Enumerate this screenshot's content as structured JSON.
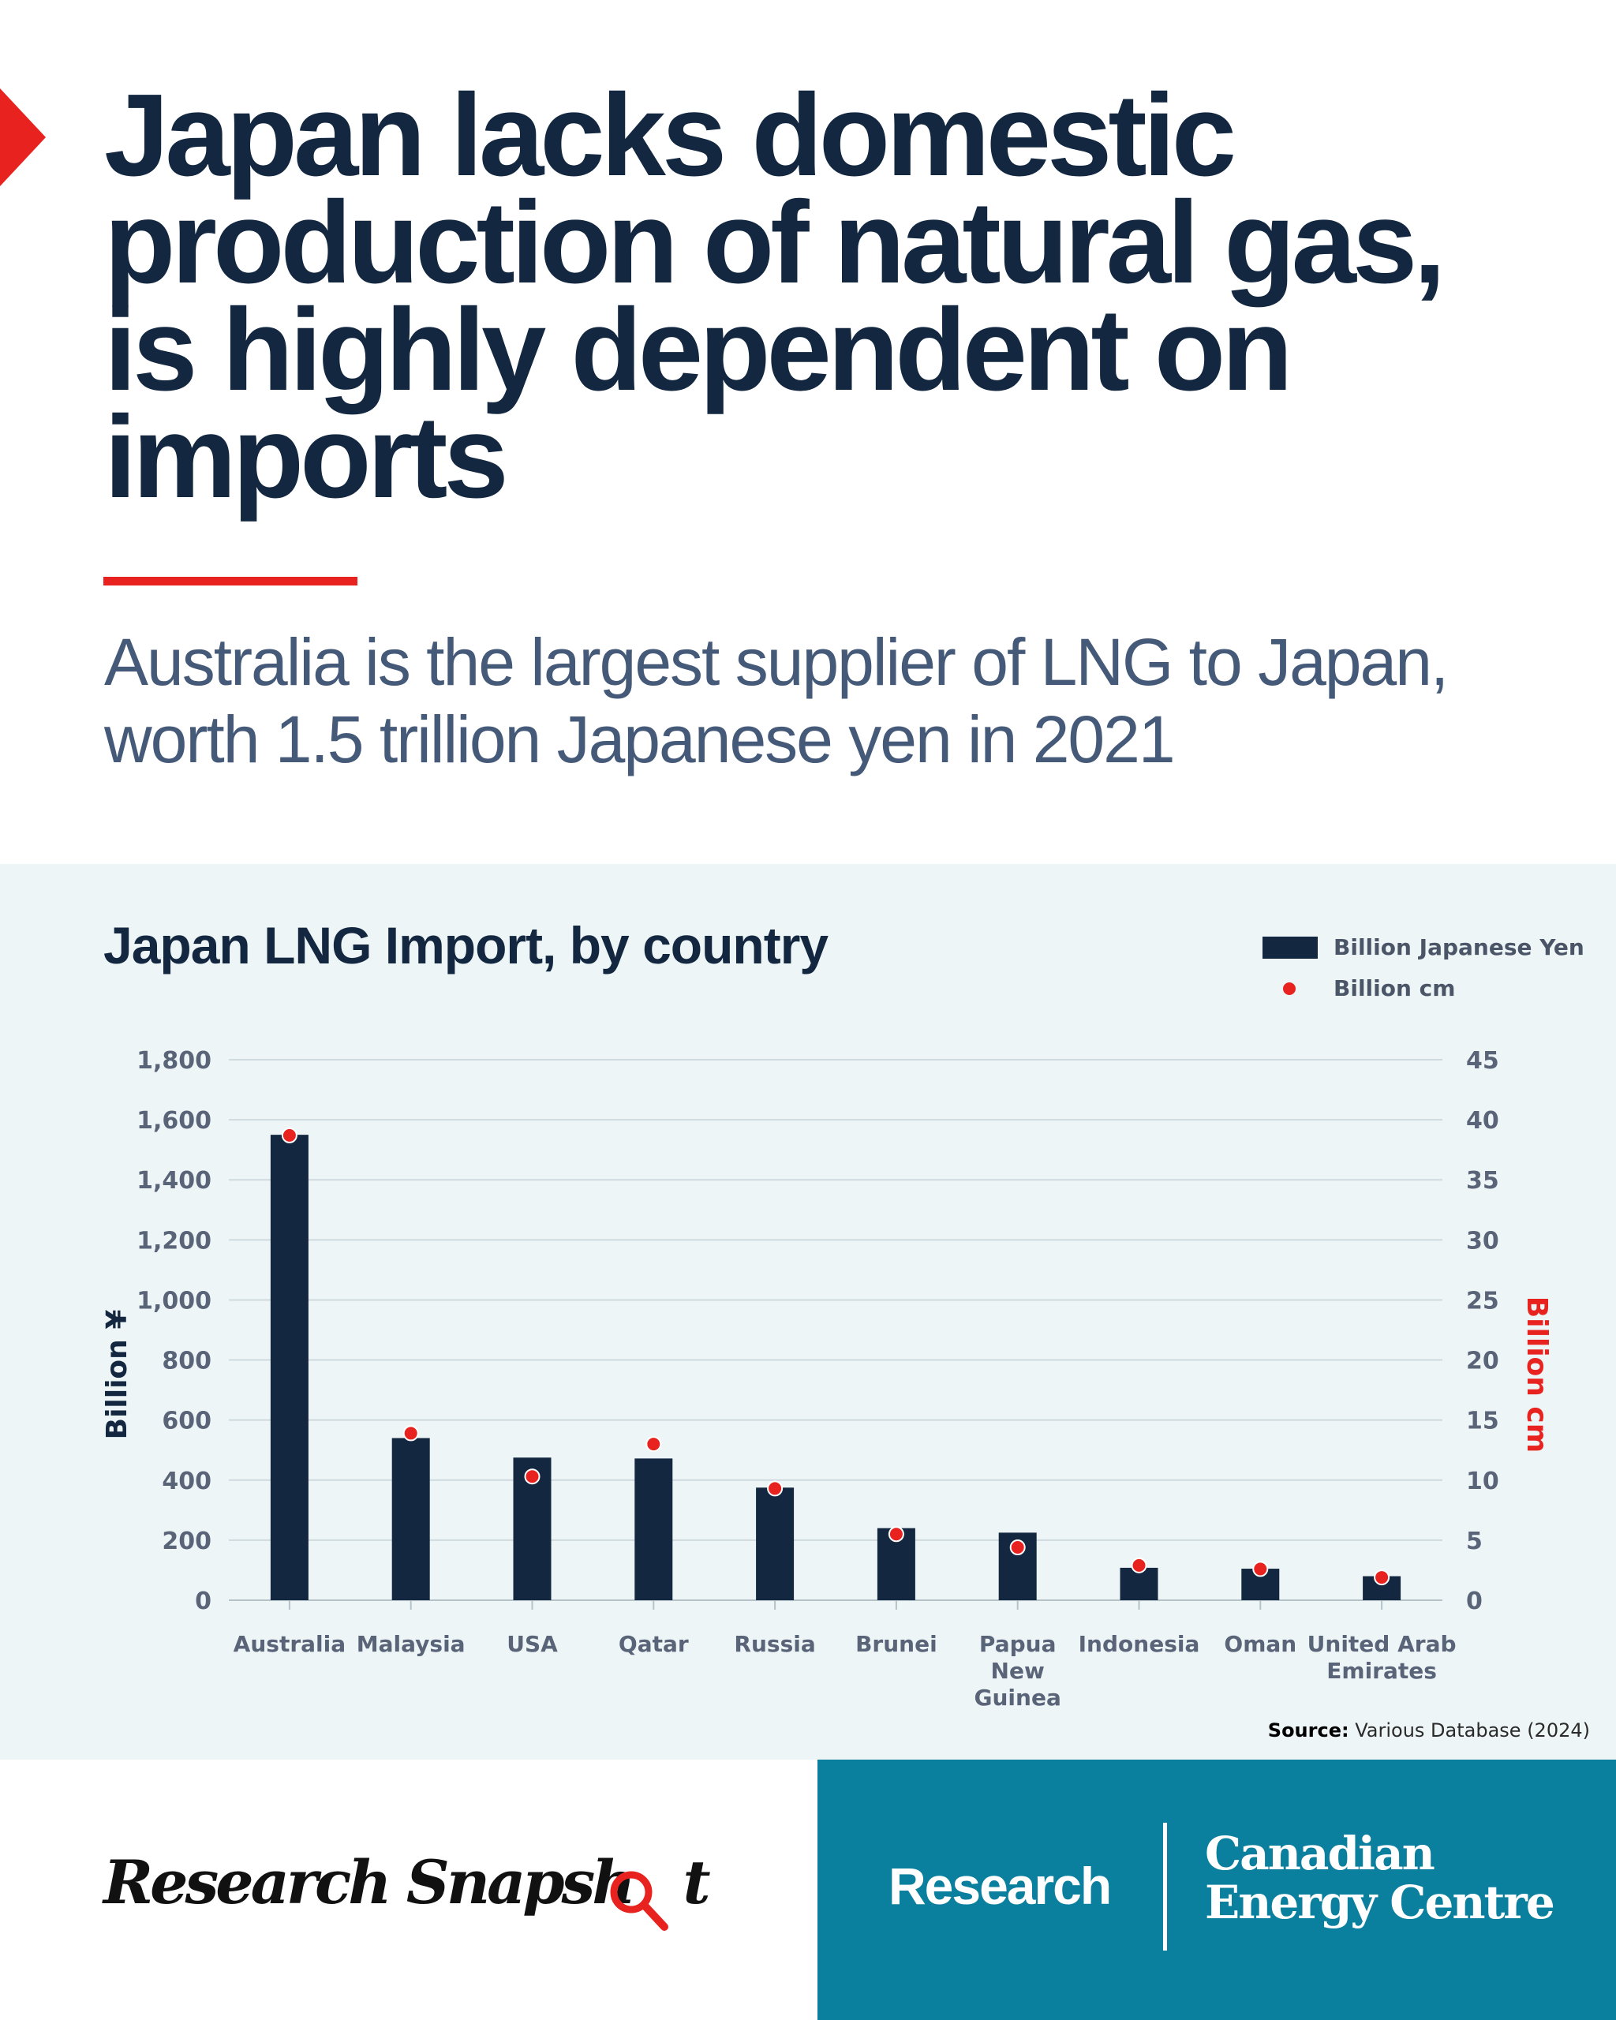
{
  "header": {
    "headline": "Japan lacks domestic production of natural gas, is highly dependent on imports",
    "subhead": "Australia is the largest supplier of LNG to Japan, worth 1.5 trillion Japanese yen in 2021"
  },
  "colors": {
    "navy": "#132840",
    "red": "#e8231f",
    "panel": "#eef5f7",
    "teal": "#0b7f9e"
  },
  "chart_data": {
    "type": "bar",
    "title": "Japan LNG Import, by country",
    "categories": [
      "Australia",
      "Malaysia",
      "USA",
      "Qatar",
      "Russia",
      "Brunei",
      "Papua New Guinea",
      "Indonesia",
      "Oman",
      "United Arab Emirates"
    ],
    "category_lines": [
      [
        "Australia"
      ],
      [
        "Malaysia"
      ],
      [
        "USA"
      ],
      [
        "Qatar"
      ],
      [
        "Russia"
      ],
      [
        "Brunei"
      ],
      [
        "Papua",
        "New",
        "Guinea"
      ],
      [
        "Indonesia"
      ],
      [
        "Oman"
      ],
      [
        "United Arab",
        "Emirates"
      ]
    ],
    "series": [
      {
        "name": "Billion Japanese Yen",
        "type": "bar",
        "axis": "left",
        "color": "#132840",
        "values": [
          1550,
          540,
          475,
          472,
          375,
          240,
          225,
          108,
          105,
          80
        ]
      },
      {
        "name": "Billion cm",
        "type": "scatter",
        "axis": "right",
        "color": "#e8231f",
        "values": [
          38.7,
          13.9,
          10.3,
          13.0,
          9.3,
          5.5,
          4.4,
          2.9,
          2.6,
          1.9
        ]
      }
    ],
    "y_left": {
      "label": "Billion ¥",
      "min": 0,
      "max": 1800,
      "ticks": [
        "0",
        "200",
        "400",
        "600",
        "800",
        "1,000",
        "1,200",
        "1,400",
        "1,600",
        "1,800"
      ]
    },
    "y_right": {
      "label": "Billion cm",
      "min": 0,
      "max": 45,
      "ticks": [
        "0",
        "5",
        "10",
        "15",
        "20",
        "25",
        "30",
        "35",
        "40",
        "45"
      ]
    },
    "grid": true,
    "legend_position": "top-right"
  },
  "source": {
    "label": "Source:",
    "text": "Various Database (2024)"
  },
  "footer": {
    "brand_main": "Research Snapsh",
    "brand_tail": "t",
    "org_division": "Research",
    "org_name_line1": "Canadian",
    "org_name_line2": "Energy Centre"
  }
}
